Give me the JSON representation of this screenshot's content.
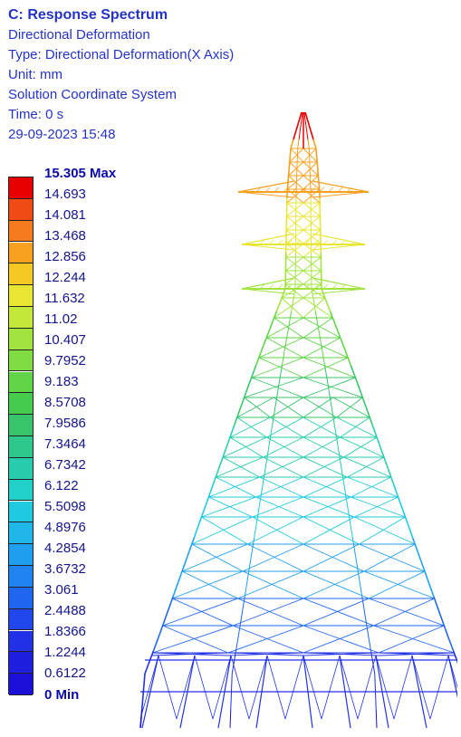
{
  "header": {
    "title": "C: Response Spectrum",
    "line1": "Directional Deformation",
    "line2": "Type: Directional Deformation(X Axis)",
    "line3": "Unit: mm",
    "line4": "Solution Coordinate System",
    "line5": "Time: 0 s",
    "line6": "29-09-2023 15:48"
  },
  "legend": {
    "max_label": "15.305 Max",
    "min_label": "0 Min",
    "labels": [
      "14.693",
      "14.081",
      "13.468",
      "12.856",
      "12.244",
      "11.632",
      "11.02",
      "10.407",
      "9.7952",
      "9.183",
      "8.5708",
      "7.9586",
      "7.3464",
      "6.7342",
      "6.122",
      "5.5098",
      "4.8976",
      "4.2854",
      "3.6732",
      "3.061",
      "2.4488",
      "1.8366",
      "1.2244",
      "0.6122"
    ],
    "colors": [
      "#e60000",
      "#f04b14",
      "#f57b1e",
      "#f8a020",
      "#f5c823",
      "#e8e633",
      "#c4e83a",
      "#a1e43f",
      "#7fdd43",
      "#5fd547",
      "#45cc4c",
      "#37c46a",
      "#2ec78c",
      "#27cdad",
      "#21d1c9",
      "#1fc9e0",
      "#1fb7ea",
      "#1e9ff0",
      "#1f84f2",
      "#1f66f0",
      "#2048ec",
      "#2031e6",
      "#1f1fe0",
      "#1a10d8"
    ]
  },
  "model": {
    "icon": "transmission-tower-icon"
  }
}
